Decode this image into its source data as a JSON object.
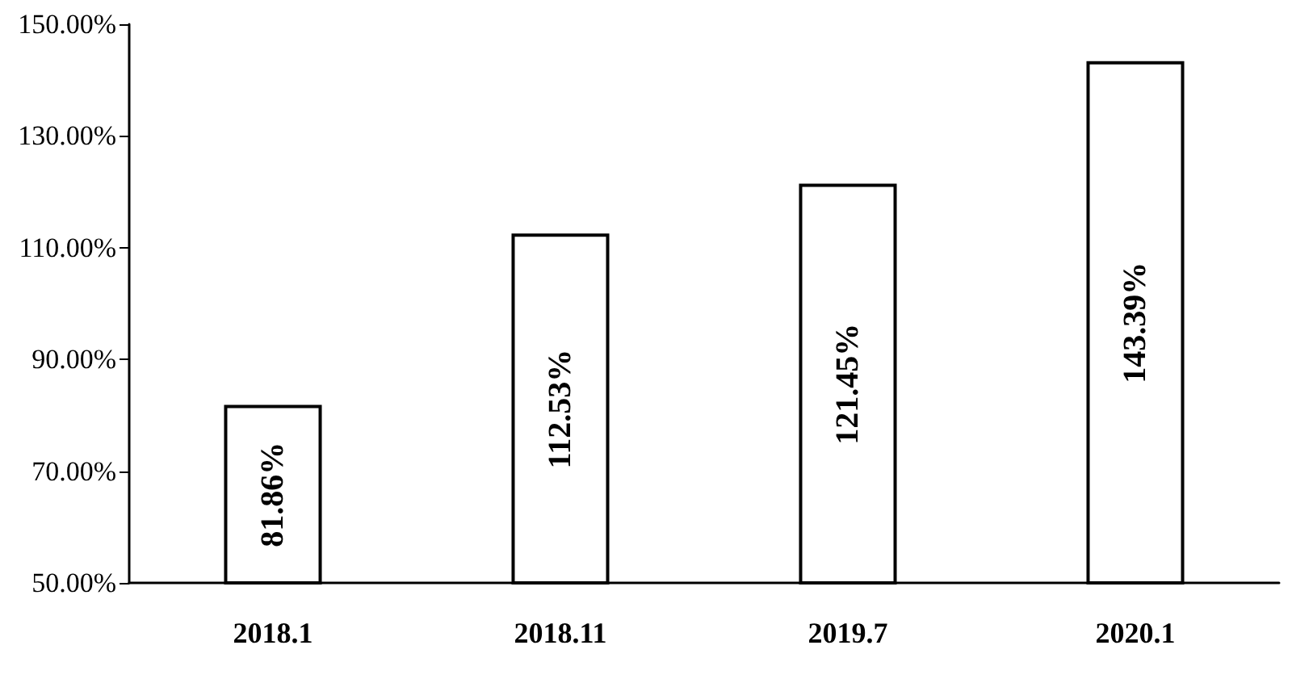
{
  "chart_data": {
    "type": "bar",
    "categories": [
      "2018.1",
      "2018.11",
      "2019.7",
      "2020.1"
    ],
    "values": [
      81.86,
      112.53,
      121.45,
      143.39
    ],
    "value_labels": [
      "81.86%",
      "112.53%",
      "121.45%",
      "143.39%"
    ],
    "color": "#ffffff",
    "ylim": [
      50,
      150
    ],
    "yticks": [
      {
        "value": 50,
        "label": "50.00%"
      },
      {
        "value": 70,
        "label": "70.00%"
      },
      {
        "value": 90,
        "label": "90.00%"
      },
      {
        "value": 110,
        "label": "110.00%"
      },
      {
        "value": 130,
        "label": "130.00%"
      },
      {
        "value": 150,
        "label": "150.00%"
      }
    ],
    "grid": false
  }
}
